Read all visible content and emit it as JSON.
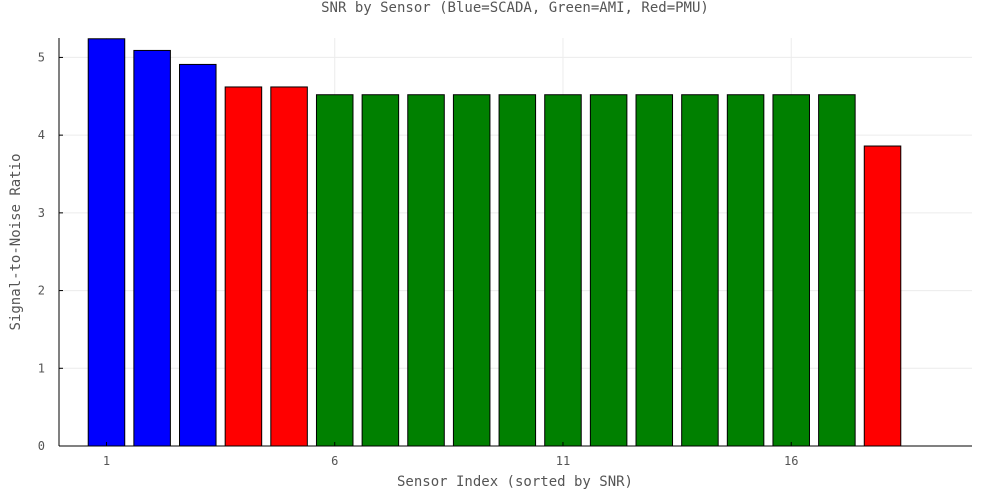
{
  "chart_data": {
    "type": "bar",
    "title": "SNR by Sensor (Blue=SCADA, Green=AMI, Red=PMU)",
    "xlabel": "Sensor Index (sorted by SNR)",
    "ylabel": "Signal-to-Noise Ratio",
    "x": [
      1,
      2,
      3,
      4,
      5,
      6,
      7,
      8,
      9,
      10,
      11,
      12,
      13,
      14,
      15,
      16,
      17,
      18
    ],
    "values": [
      5.24,
      5.09,
      4.91,
      4.62,
      4.62,
      4.52,
      4.52,
      4.52,
      4.52,
      4.52,
      4.52,
      4.52,
      4.52,
      4.52,
      4.52,
      4.52,
      4.52,
      3.86
    ],
    "bar_colors": [
      "#0000ff",
      "#0000ff",
      "#0000ff",
      "#ff0000",
      "#ff0000",
      "#008000",
      "#008000",
      "#008000",
      "#008000",
      "#008000",
      "#008000",
      "#008000",
      "#008000",
      "#008000",
      "#008000",
      "#008000",
      "#008000",
      "#ff0000"
    ],
    "xticks": [
      1,
      6,
      11,
      16
    ],
    "yticks": [
      0,
      1,
      2,
      3,
      4,
      5
    ],
    "xlim": [
      -0.04,
      19.96
    ],
    "ylim": [
      0,
      5.25
    ],
    "grid": true,
    "legend": false
  }
}
